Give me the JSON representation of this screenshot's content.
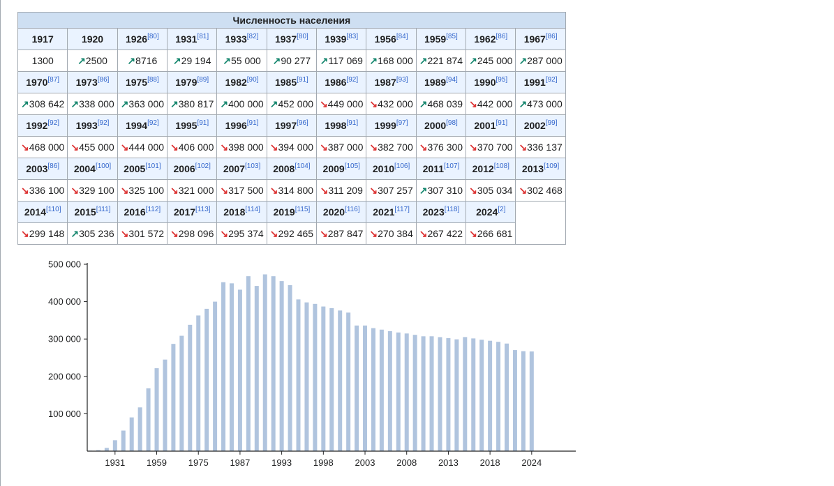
{
  "table": {
    "caption": "Численность населения",
    "cols": 11,
    "rows": [
      [
        {
          "y": "1917",
          "r": ""
        },
        {
          "y": "1920",
          "r": ""
        },
        {
          "y": "1926",
          "r": "[80]"
        },
        {
          "y": "1931",
          "r": "[81]"
        },
        {
          "y": "1933",
          "r": "[82]"
        },
        {
          "y": "1937",
          "r": "[80]"
        },
        {
          "y": "1939",
          "r": "[83]"
        },
        {
          "y": "1956",
          "r": "[84]"
        },
        {
          "y": "1959",
          "r": "[85]"
        },
        {
          "y": "1962",
          "r": "[86]"
        },
        {
          "y": "1967",
          "r": "[86]"
        }
      ],
      [
        {
          "y": "1970",
          "r": "[87]"
        },
        {
          "y": "1973",
          "r": "[86]"
        },
        {
          "y": "1975",
          "r": "[88]"
        },
        {
          "y": "1979",
          "r": "[89]"
        },
        {
          "y": "1982",
          "r": "[90]"
        },
        {
          "y": "1985",
          "r": "[91]"
        },
        {
          "y": "1986",
          "r": "[92]"
        },
        {
          "y": "1987",
          "r": "[93]"
        },
        {
          "y": "1989",
          "r": "[94]"
        },
        {
          "y": "1990",
          "r": "[95]"
        },
        {
          "y": "1991",
          "r": "[92]"
        }
      ],
      [
        {
          "y": "1992",
          "r": "[92]"
        },
        {
          "y": "1993",
          "r": "[92]"
        },
        {
          "y": "1994",
          "r": "[92]"
        },
        {
          "y": "1995",
          "r": "[91]"
        },
        {
          "y": "1996",
          "r": "[91]"
        },
        {
          "y": "1997",
          "r": "[96]"
        },
        {
          "y": "1998",
          "r": "[91]"
        },
        {
          "y": "1999",
          "r": "[97]"
        },
        {
          "y": "2000",
          "r": "[98]"
        },
        {
          "y": "2001",
          "r": "[91]"
        },
        {
          "y": "2002",
          "r": "[99]"
        }
      ],
      [
        {
          "y": "2003",
          "r": "[86]"
        },
        {
          "y": "2004",
          "r": "[100]"
        },
        {
          "y": "2005",
          "r": "[101]"
        },
        {
          "y": "2006",
          "r": "[102]"
        },
        {
          "y": "2007",
          "r": "[103]"
        },
        {
          "y": "2008",
          "r": "[104]"
        },
        {
          "y": "2009",
          "r": "[105]"
        },
        {
          "y": "2010",
          "r": "[106]"
        },
        {
          "y": "2011",
          "r": "[107]"
        },
        {
          "y": "2012",
          "r": "[108]"
        },
        {
          "y": "2013",
          "r": "[109]"
        }
      ],
      [
        {
          "y": "2014",
          "r": "[110]"
        },
        {
          "y": "2015",
          "r": "[111]"
        },
        {
          "y": "2016",
          "r": "[112]"
        },
        {
          "y": "2017",
          "r": "[113]"
        },
        {
          "y": "2018",
          "r": "[114]"
        },
        {
          "y": "2019",
          "r": "[115]"
        },
        {
          "y": "2020",
          "r": "[116]"
        },
        {
          "y": "2021",
          "r": "[117]"
        },
        {
          "y": "2023",
          "r": "[118]"
        },
        {
          "y": "2024",
          "r": "[2]"
        }
      ]
    ],
    "values": [
      [
        {
          "v": "1300",
          "t": ""
        },
        {
          "v": "2500",
          "t": "up"
        },
        {
          "v": "8716",
          "t": "up"
        },
        {
          "v": "29 194",
          "t": "up"
        },
        {
          "v": "55 000",
          "t": "up"
        },
        {
          "v": "90 277",
          "t": "up"
        },
        {
          "v": "117 069",
          "t": "up"
        },
        {
          "v": "168 000",
          "t": "up"
        },
        {
          "v": "221 874",
          "t": "up"
        },
        {
          "v": "245 000",
          "t": "up"
        },
        {
          "v": "287 000",
          "t": "up"
        }
      ],
      [
        {
          "v": "308 642",
          "t": "up"
        },
        {
          "v": "338 000",
          "t": "up"
        },
        {
          "v": "363 000",
          "t": "up"
        },
        {
          "v": "380 817",
          "t": "up"
        },
        {
          "v": "400 000",
          "t": "up"
        },
        {
          "v": "452 000",
          "t": "up"
        },
        {
          "v": "449 000",
          "t": "down"
        },
        {
          "v": "432 000",
          "t": "down"
        },
        {
          "v": "468 039",
          "t": "up"
        },
        {
          "v": "442 000",
          "t": "down"
        },
        {
          "v": "473 000",
          "t": "up"
        }
      ],
      [
        {
          "v": "468 000",
          "t": "down"
        },
        {
          "v": "455 000",
          "t": "down"
        },
        {
          "v": "444 000",
          "t": "down"
        },
        {
          "v": "406 000",
          "t": "down"
        },
        {
          "v": "398 000",
          "t": "down"
        },
        {
          "v": "394 000",
          "t": "down"
        },
        {
          "v": "387 000",
          "t": "down"
        },
        {
          "v": "382 700",
          "t": "down"
        },
        {
          "v": "376 300",
          "t": "down"
        },
        {
          "v": "370 700",
          "t": "down"
        },
        {
          "v": "336 137",
          "t": "down"
        }
      ],
      [
        {
          "v": "336 100",
          "t": "down"
        },
        {
          "v": "329 100",
          "t": "down"
        },
        {
          "v": "325 100",
          "t": "down"
        },
        {
          "v": "321 000",
          "t": "down"
        },
        {
          "v": "317 500",
          "t": "down"
        },
        {
          "v": "314 800",
          "t": "down"
        },
        {
          "v": "311 209",
          "t": "down"
        },
        {
          "v": "307 257",
          "t": "down"
        },
        {
          "v": "307 310",
          "t": "up"
        },
        {
          "v": "305 034",
          "t": "down"
        },
        {
          "v": "302 468",
          "t": "down"
        }
      ],
      [
        {
          "v": "299 148",
          "t": "down"
        },
        {
          "v": "305 236",
          "t": "up"
        },
        {
          "v": "301 572",
          "t": "down"
        },
        {
          "v": "298 096",
          "t": "down"
        },
        {
          "v": "295 374",
          "t": "down"
        },
        {
          "v": "292 465",
          "t": "down"
        },
        {
          "v": "287 847",
          "t": "down"
        },
        {
          "v": "270 384",
          "t": "down"
        },
        {
          "v": "267 422",
          "t": "down"
        },
        {
          "v": "266 681",
          "t": "down"
        }
      ]
    ],
    "arrows": {
      "up": "↗",
      "down": "↘"
    },
    "colors": {
      "up": "#14866d",
      "down": "#dd3333",
      "header": "#cedff2",
      "year_cell": "#eaf3ff"
    }
  },
  "chart_data": {
    "type": "bar",
    "title": "",
    "xlabel": "",
    "ylabel": "",
    "ylim": [
      0,
      500000
    ],
    "yticks": [
      100000,
      200000,
      300000,
      400000,
      500000
    ],
    "ytick_labels": [
      "100 000",
      "200 000",
      "300 000",
      "400 000",
      "500 000"
    ],
    "xtick_labels": [
      "1931",
      "1959",
      "1975",
      "1987",
      "1993",
      "1998",
      "2003",
      "2008",
      "2013",
      "2018",
      "2024"
    ],
    "bar_color": "#b0c4de",
    "categories": [
      "1917",
      "1920",
      "1926",
      "1931",
      "1933",
      "1937",
      "1939",
      "1956",
      "1959",
      "1962",
      "1967",
      "1970",
      "1973",
      "1975",
      "1979",
      "1982",
      "1985",
      "1986",
      "1987",
      "1989",
      "1990",
      "1991",
      "1992",
      "1993",
      "1994",
      "1995",
      "1996",
      "1997",
      "1998",
      "1999",
      "2000",
      "2001",
      "2002",
      "2003",
      "2004",
      "2005",
      "2006",
      "2007",
      "2008",
      "2009",
      "2010",
      "2011",
      "2012",
      "2013",
      "2014",
      "2015",
      "2016",
      "2017",
      "2018",
      "2019",
      "2020",
      "2021",
      "2023",
      "2024"
    ],
    "values": [
      1300,
      2500,
      8716,
      29194,
      55000,
      90277,
      117069,
      168000,
      221874,
      245000,
      287000,
      308642,
      338000,
      363000,
      380817,
      400000,
      452000,
      449000,
      432000,
      468039,
      442000,
      473000,
      468000,
      455000,
      444000,
      406000,
      398000,
      394000,
      387000,
      382700,
      376300,
      370700,
      336137,
      336100,
      329100,
      325100,
      321000,
      317500,
      314800,
      311209,
      307257,
      307310,
      305034,
      302468,
      299148,
      305236,
      301572,
      298096,
      295374,
      292465,
      287847,
      270384,
      267422,
      266681
    ]
  }
}
